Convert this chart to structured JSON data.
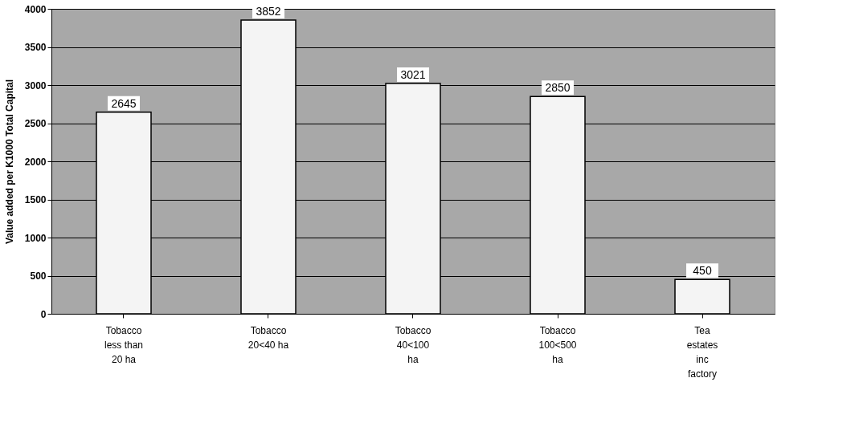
{
  "chart_data": {
    "type": "bar",
    "categories": [
      "Tobacco\nless than\n20 ha",
      "Tobacco\n20<40 ha",
      "Tobacco\n40<100\nha",
      "Tobacco\n100<500\nha",
      "Tea\nestates\ninc\nfactory"
    ],
    "values": [
      2645,
      3852,
      3021,
      2850,
      450
    ],
    "color": "#f4f4f4",
    "ylabel": "Value added per K1000 Total Capital",
    "ylim": [
      0,
      4000
    ],
    "yticks": [
      0,
      500,
      1000,
      1500,
      2000,
      2500,
      3000,
      3500,
      4000
    ],
    "grid": "y",
    "data_labels": true
  }
}
